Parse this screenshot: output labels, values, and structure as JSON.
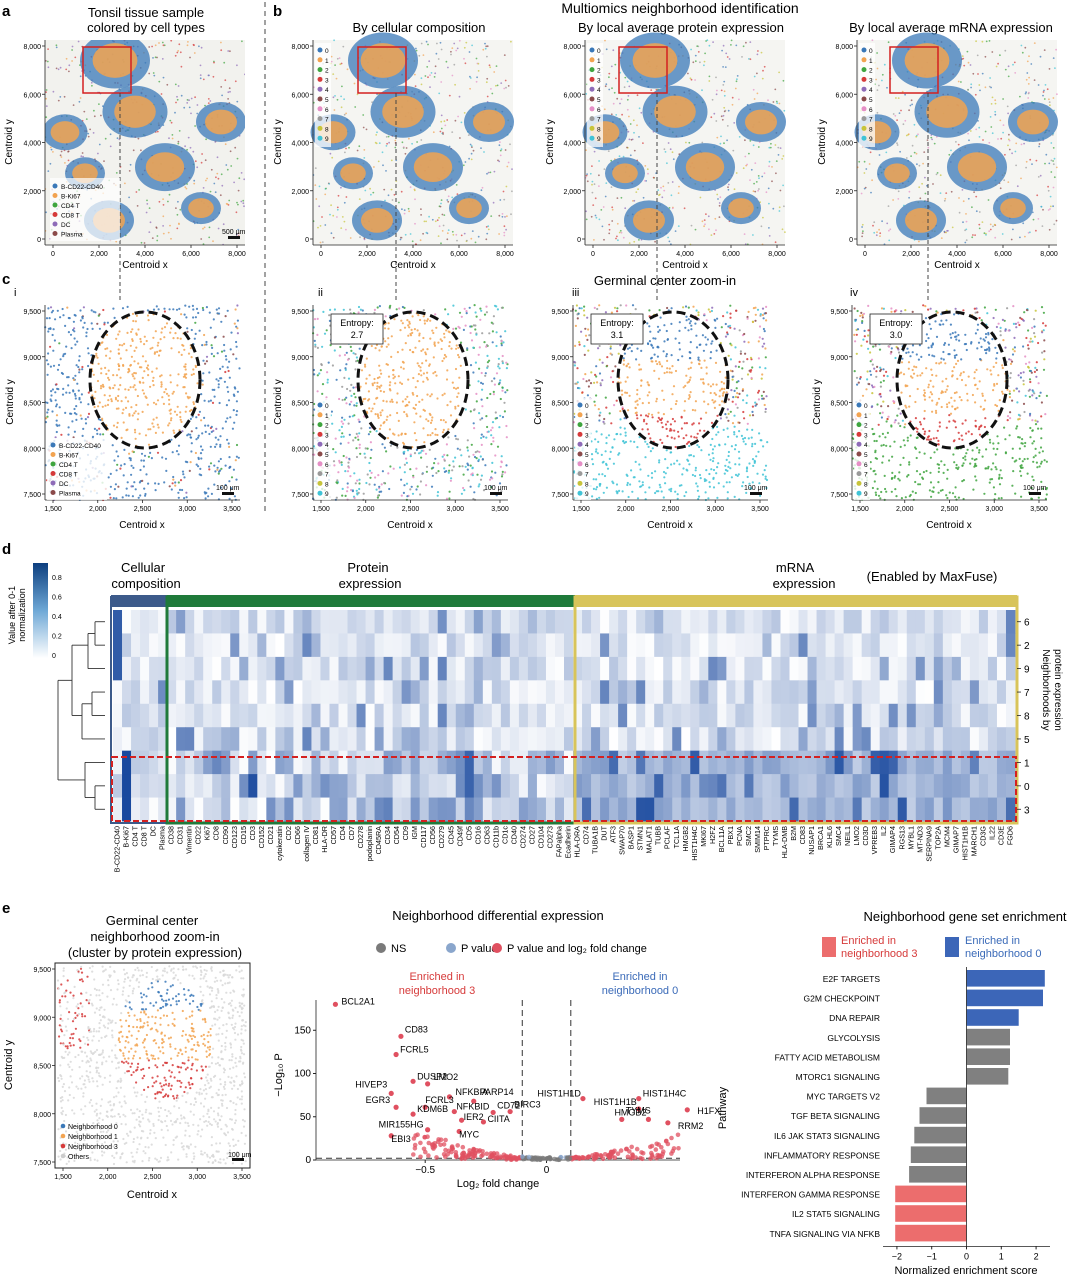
{
  "panel_letters": {
    "a": "a",
    "b": "b",
    "c": "c",
    "d": "d",
    "e": "e"
  },
  "colors": {
    "blue": "#3a78b8",
    "orange": "#f2a350",
    "green": "#3fa53f",
    "red": "#d63a3a",
    "purple": "#8e6bb8",
    "brown": "#8b4a4a",
    "pink": "#e58fc6",
    "grey": "#9a9a9a",
    "olive": "#c7c43a",
    "cyan": "#3fc3d6",
    "protein_bar": "#1f7a3a",
    "mrna_bar": "#d8c45a",
    "cell_bar": "#3c5a8a",
    "sig_red": "#e05060",
    "pval_blue": "#8aa6cc",
    "ns_grey": "#7a7a7a",
    "enrich_red": "#ec6d6d",
    "enrich_blue": "#3c66b8",
    "enrich_grey": "#808080"
  },
  "panel_a": {
    "title_line1": "Tonsil tissue sample",
    "title_line2": "colored by cell types",
    "xlabel": "Centroid x",
    "ylabel": "Centroid y",
    "xticks": [
      "0",
      "2,000",
      "4,000",
      "6,000",
      "8,000"
    ],
    "yticks": [
      "8,000",
      "6,000",
      "4,000",
      "2,000",
      "0"
    ],
    "scalebar": "500 μm",
    "legend": [
      "B-CD22-CD40",
      "B-Ki67",
      "CD4 T",
      "CD8 T",
      "DC",
      "Plasma"
    ]
  },
  "panel_b": {
    "header": "Multiomics neighborhood identification",
    "titles": [
      "By cellular composition",
      "By local average protein expression",
      "By local average mRNA expression"
    ],
    "xlabel": "Centroid x",
    "ylabel": "Centroid y",
    "xticks": [
      "0",
      "2,000",
      "4,000",
      "6,000",
      "8,000"
    ],
    "yticks": [
      "8,000",
      "6,000",
      "4,000",
      "2,000",
      "0"
    ],
    "legend": [
      "0",
      "1",
      "2",
      "3",
      "4",
      "5",
      "6",
      "7",
      "8",
      "9"
    ]
  },
  "panel_c": {
    "header": "Germinal center zoom-in",
    "roman": [
      "i",
      "ii",
      "iii",
      "iv"
    ],
    "entropy": [
      "Entropy: 2.7",
      "Entropy: 3.1",
      "Entropy: 3.0"
    ],
    "xticks": [
      "1,500",
      "2,000",
      "2,500",
      "3,000",
      "3,500"
    ],
    "yticks": [
      "9,500",
      "9,000",
      "8,500",
      "8,000",
      "7,500"
    ],
    "xlabel": "Centroid x",
    "ylabel": "Centroid y",
    "scalebar": "100 μm"
  },
  "panel_d": {
    "colorbar_label_line1": "Value after 0-1",
    "colorbar_label_line2": "normalization",
    "colorbar_ticks": [
      "0.8",
      "0.6",
      "0.4",
      "0.2",
      "0"
    ],
    "groups": [
      {
        "line1": "Cellular",
        "line2": "composition"
      },
      {
        "line1": "Protein",
        "line2": "expression"
      },
      {
        "line1": "mRNA",
        "line2": "expression"
      }
    ],
    "maxfuse": "(Enabled by MaxFuse)",
    "row_labels": [
      "6",
      "2",
      "9",
      "7",
      "8",
      "5",
      "1",
      "0",
      "3"
    ],
    "side_label_line1": "Neighborhoods by",
    "side_label_line2": "protein expression",
    "col_labels": [
      "B-CD22-CD40",
      "B-Ki67",
      "CD4 T",
      "CD8 T",
      "DC",
      "Plasma",
      "CD38",
      "CD31",
      "Vimentin",
      "CD22",
      "Ki67",
      "CD8",
      "CD90",
      "CD123",
      "CD15",
      "CD3",
      "CD152",
      "CD21",
      "cytokeratin",
      "CD2",
      "CD66",
      "collagen IV",
      "CD81",
      "HLA-DR",
      "CD57",
      "CD4",
      "CD7",
      "CD278",
      "podoplanin",
      "CD45RA",
      "CD34",
      "CD54",
      "CD9",
      "IGM",
      "CD117",
      "CD56",
      "CD279",
      "CD45",
      "CD49f",
      "CD5",
      "CD16",
      "CD63",
      "CD11b",
      "CD1c",
      "CD40",
      "CD274",
      "CD27",
      "CD104",
      "CD273",
      "FAPalpha",
      "Ecadherin",
      "HLA-DRA",
      "CD74",
      "TUBA1B",
      "DUT",
      "ATF3",
      "SWAP70",
      "BASP1",
      "STMN1",
      "MALAT1",
      "TUBB",
      "PCLAF",
      "TCL1A",
      "HMGB2",
      "HIST1H4C",
      "MKI67",
      "H2FZ",
      "BCL11A",
      "PBX1",
      "PCNA",
      "SMC2",
      "SMIM14",
      "PTPRC",
      "TYMS",
      "HLA-DMB",
      "B2M",
      "CD83",
      "NUSAP1",
      "BRCA1",
      "KLHL6",
      "SMC4",
      "NEIL1",
      "LMO2",
      "CD3D",
      "VPREB3",
      "IL2",
      "GIMAP4",
      "RGS13",
      "MYBL1",
      "MT-ND3",
      "SERPINA9",
      "TOP2A",
      "MCM4",
      "GIMAP7",
      "HIST1H1B",
      "MARCH1",
      "CD3G",
      "IL22",
      "CD3E",
      "FGD6"
    ]
  },
  "panel_e": {
    "gc_title": [
      "Germinal center",
      "neighborhood zoom-in",
      "(cluster by protein expression)"
    ],
    "gc_xticks": [
      "1,500",
      "2,000",
      "2,500",
      "3,000",
      "3,500"
    ],
    "gc_yticks": [
      "9,500",
      "9,000",
      "8,500",
      "8,000",
      "7,500"
    ],
    "gc_xlabel": "Centroid x",
    "gc_ylabel": "Centroid y",
    "gc_scalebar": "100 μm",
    "gc_legend": [
      "Neighborhood 0",
      "Neighborhood 1",
      "Neighborhood 3",
      "Others"
    ],
    "volcano_title": "Neighborhood differential expression",
    "volcano_legend": [
      "NS",
      "P value",
      "P value and log₂ fold change"
    ],
    "enriched3": [
      "Enriched in",
      "neighborhood 3"
    ],
    "enriched0": [
      "Enriched in",
      "neighborhood 0"
    ],
    "volcano_xlabel": "Log₂ fold change",
    "volcano_ylabel": "−Log₁₀ P",
    "volcano_xticks": [
      "−0.5",
      "0"
    ],
    "volcano_yticks": [
      "150",
      "100",
      "50",
      "0"
    ],
    "gene_labels": [
      "BCL2A1",
      "CD83",
      "FCRL5",
      "DUSP2",
      "LMO2",
      "HIVEP3",
      "NFKBIA",
      "PARP14",
      "EGR3",
      "FCRL3",
      "NFKBID",
      "CD72",
      "BIRC3",
      "KDM6B",
      "IER2",
      "CIITA",
      "MIR155HG",
      "MYC",
      "EBI3",
      "HIST1H1D",
      "HIST1H4C",
      "HIST1H1B",
      "H1FX",
      "HMGB2",
      "TYMS",
      "RRM2"
    ],
    "enrich_title": "Neighborhood gene set enrichment",
    "enrich_legend": [
      "Enriched in",
      "neighborhood 3",
      "Enriched in",
      "neighborhood 0"
    ],
    "enrich_ylabel": "Pathway",
    "enrich_xlabel": "Normalized enrichment score",
    "enrich_xticks": [
      "−2",
      "−1",
      "0",
      "1",
      "2"
    ]
  },
  "chart_data": [
    {
      "type": "bar",
      "title": "Neighborhood gene set enrichment",
      "xlabel": "Normalized enrichment score",
      "ylabel": "Pathway",
      "xlim": [
        -2.4,
        2.4
      ],
      "categories": [
        "E2F TARGETS",
        "G2M CHECKPOINT",
        "DNA REPAIR",
        "GLYCOLYSIS",
        "FATTY ACID METABOLISM",
        "MTORC1 SIGNALING",
        "MYC TARGETS V2",
        "TGF BETA SIGNALING",
        "IL6 JAK STAT3 SIGNALING",
        "INFLAMMATORY RESPONSE",
        "INTERFERON ALPHA RESPONSE",
        "INTERFERON GAMMA RESPONSE",
        "IL2 STAT5 SIGNALING",
        "TNFA SIGNALING VIA NFKB"
      ],
      "values": [
        2.25,
        2.2,
        1.5,
        1.25,
        1.25,
        1.2,
        -1.15,
        -1.35,
        -1.5,
        -1.6,
        -1.65,
        -2.05,
        -2.05,
        -2.05
      ],
      "groups": [
        "neighborhood 0",
        "neighborhood 0",
        "neighborhood 0",
        "ns",
        "ns",
        "ns",
        "ns",
        "ns",
        "ns",
        "ns",
        "ns",
        "neighborhood 3",
        "neighborhood 3",
        "neighborhood 3"
      ]
    },
    {
      "type": "scatter",
      "title": "Neighborhood differential expression",
      "xlabel": "Log₂ fold change",
      "ylabel": "−Log₁₀ P",
      "ylim": [
        0,
        185
      ],
      "series": [
        {
          "name": "P value and log₂ fold change",
          "points": [
            [
              -0.87,
              180
            ],
            [
              -0.6,
              143
            ],
            [
              -0.62,
              122
            ],
            [
              -0.55,
              91
            ],
            [
              -0.49,
              88
            ],
            [
              -0.64,
              77
            ],
            [
              -0.4,
              73
            ],
            [
              -0.3,
              68
            ],
            [
              -0.62,
              61
            ],
            [
              -0.5,
              61
            ],
            [
              -0.38,
              56
            ],
            [
              -0.22,
              55
            ],
            [
              -0.15,
              56
            ],
            [
              -0.55,
              53
            ],
            [
              -0.35,
              46
            ],
            [
              -0.26,
              44
            ],
            [
              -0.49,
              35
            ],
            [
              -0.36,
              33
            ],
            [
              -0.64,
              28
            ],
            [
              0.15,
              71
            ],
            [
              0.38,
              71
            ],
            [
              0.38,
              59
            ],
            [
              0.58,
              58
            ],
            [
              0.42,
              47
            ],
            [
              0.31,
              47
            ],
            [
              0.5,
              43
            ]
          ]
        }
      ]
    }
  ]
}
